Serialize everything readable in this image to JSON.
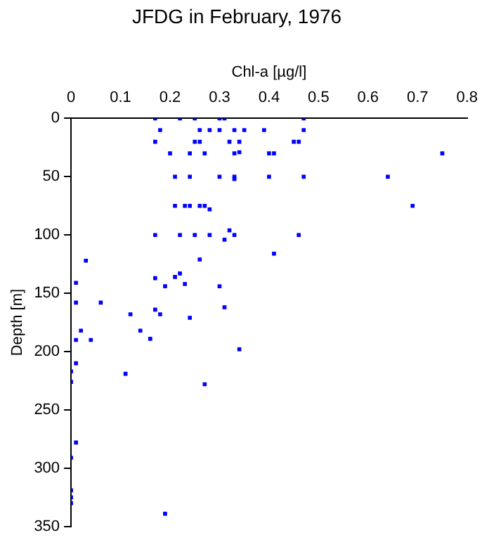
{
  "chart_data": {
    "type": "scatter",
    "title": "JFDG in February, 1976",
    "xlabel": "Chl-a [µg/l]",
    "ylabel": "Depth [m]",
    "xlim": [
      0,
      0.8
    ],
    "xticks": [
      0,
      0.1,
      0.2,
      0.3,
      0.4,
      0.5,
      0.6,
      0.7,
      0.8
    ],
    "ylim": [
      350,
      0
    ],
    "yticks": [
      0,
      50,
      100,
      150,
      200,
      250,
      300,
      350
    ],
    "grid": false,
    "legend": false,
    "marker": "square",
    "series": [
      {
        "color": "#0000ff",
        "x": [
          0.17,
          0.22,
          0.25,
          0.3,
          0.31,
          0.47,
          0.18,
          0.26,
          0.28,
          0.3,
          0.33,
          0.35,
          0.39,
          0.47,
          0.17,
          0.25,
          0.26,
          0.32,
          0.34,
          0.45,
          0.46,
          0.2,
          0.24,
          0.27,
          0.33,
          0.34,
          0.4,
          0.41,
          0.75,
          0.21,
          0.24,
          0.3,
          0.33,
          0.33,
          0.4,
          0.47,
          0.64,
          0.21,
          0.23,
          0.24,
          0.26,
          0.27,
          0.69,
          0.28,
          0.17,
          0.22,
          0.25,
          0.28,
          0.33,
          0.46,
          0.32,
          0.31,
          0.41,
          0.03,
          0.26,
          0.22,
          0.21,
          0.17,
          0.01,
          0.23,
          0.3,
          0.19,
          0.01,
          0.06,
          0.31,
          0.17,
          0.12,
          0.18,
          0.24,
          0.02,
          0.14,
          0.16,
          0.01,
          0.04,
          0.34,
          0.01,
          0,
          0.11,
          0,
          0.27,
          0.01,
          0,
          0,
          0,
          0,
          0.19
        ],
        "values": [
          0,
          0,
          0,
          0,
          0,
          0,
          10,
          10,
          10,
          10,
          10,
          10,
          10,
          10,
          20,
          20,
          20,
          20,
          20,
          20,
          20,
          30,
          30,
          30,
          30,
          29,
          30,
          30,
          30,
          50,
          50,
          50,
          50,
          52,
          50,
          50,
          50,
          75,
          75,
          75,
          75,
          75,
          75,
          78,
          100,
          100,
          100,
          100,
          100,
          100,
          96,
          104,
          116,
          122,
          121,
          133,
          136,
          137,
          141,
          142,
          144,
          144,
          158,
          158,
          162,
          164,
          168,
          168,
          171,
          182,
          182,
          189,
          190,
          190,
          198,
          210,
          217,
          219,
          226,
          228,
          278,
          291,
          319,
          325,
          330,
          339
        ]
      }
    ]
  }
}
